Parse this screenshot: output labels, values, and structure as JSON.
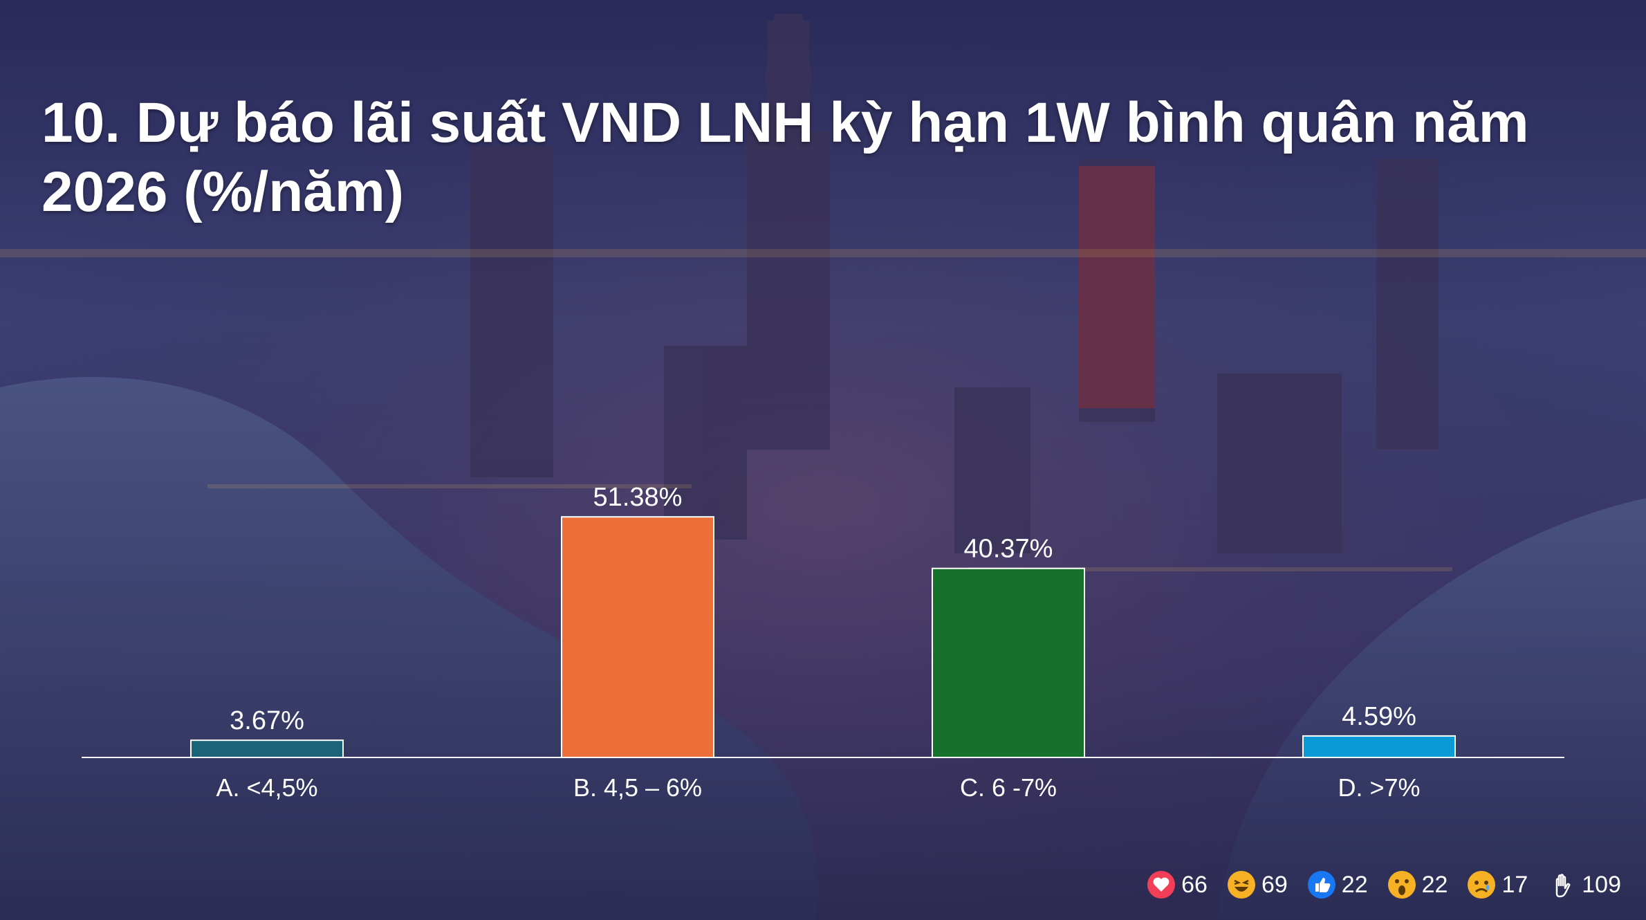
{
  "title": "10. Dự báo lãi suất VND LNH kỳ hạn 1W bình quân năm 2026 (%/năm)",
  "chart_data": {
    "type": "bar",
    "title": "10. Dự báo lãi suất VND LNH kỳ hạn 1W bình quân năm 2026 (%/năm)",
    "categories": [
      "A. <4,5%",
      "B. 4,5 – 6%",
      "C. 6 -7%",
      "D. >7%"
    ],
    "values": [
      3.67,
      51.38,
      40.37,
      4.59
    ],
    "value_labels": [
      "3.67%",
      "51.38%",
      "40.37%",
      "4.59%"
    ],
    "colors": [
      "#1b6478",
      "#ec6f3a",
      "#16712c",
      "#0a9bd6"
    ],
    "xlabel": "",
    "ylabel": "",
    "ylim": [
      0,
      52
    ],
    "grid": false,
    "legend": "none"
  },
  "reactions": [
    {
      "icon": "heart-icon",
      "count": "66",
      "color": "#f33e58"
    },
    {
      "icon": "laugh-icon",
      "count": "69",
      "color": "#f7b125"
    },
    {
      "icon": "thumbs-up-icon",
      "count": "22",
      "color": "#1877f2"
    },
    {
      "icon": "wow-icon",
      "count": "22",
      "color": "#f7b125"
    },
    {
      "icon": "sad-icon",
      "count": "17",
      "color": "#f7b125"
    },
    {
      "icon": "raised-hand-icon",
      "count": "109",
      "color": "#ffffff"
    }
  ]
}
